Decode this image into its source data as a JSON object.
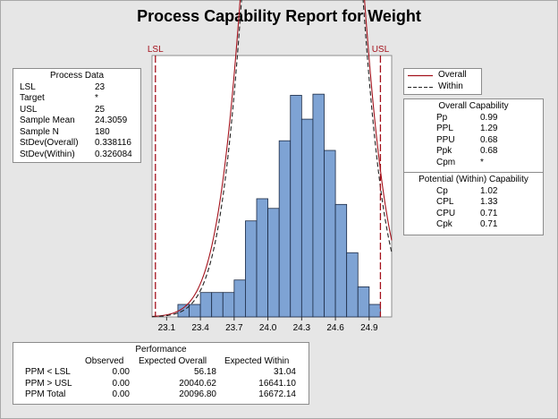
{
  "report": {
    "title": "Process Capability Report for Weight"
  },
  "process_data": {
    "title": "Process Data",
    "rows": [
      {
        "label": "LSL",
        "value": "23"
      },
      {
        "label": "Target",
        "value": "*"
      },
      {
        "label": "USL",
        "value": "25"
      },
      {
        "label": "Sample Mean",
        "value": "24.3059"
      },
      {
        "label": "Sample N",
        "value": "180"
      },
      {
        "label": "StDev(Overall)",
        "value": "0.338116"
      },
      {
        "label": "StDev(Within)",
        "value": "0.326084"
      }
    ]
  },
  "legend": {
    "overall": "Overall",
    "within": "Within"
  },
  "overall_capability": {
    "title": "Overall Capability",
    "rows": [
      {
        "label": "Pp",
        "value": "0.99"
      },
      {
        "label": "PPL",
        "value": "1.29"
      },
      {
        "label": "PPU",
        "value": "0.68"
      },
      {
        "label": "Ppk",
        "value": "0.68"
      },
      {
        "label": "Cpm",
        "value": "*"
      }
    ]
  },
  "within_capability": {
    "title": "Potential (Within) Capability",
    "rows": [
      {
        "label": "Cp",
        "value": "1.02"
      },
      {
        "label": "CPL",
        "value": "1.33"
      },
      {
        "label": "CPU",
        "value": "0.71"
      },
      {
        "label": "Cpk",
        "value": "0.71"
      }
    ]
  },
  "performance": {
    "title": "Performance",
    "columns": [
      "Observed",
      "Expected Overall",
      "Expected Within"
    ],
    "rows": [
      {
        "label": "PPM < LSL",
        "values": [
          "0.00",
          "56.18",
          "31.04"
        ]
      },
      {
        "label": "PPM > USL",
        "values": [
          "0.00",
          "20040.62",
          "16641.10"
        ]
      },
      {
        "label": "PPM Total",
        "values": [
          "0.00",
          "20096.80",
          "16672.14"
        ]
      }
    ]
  },
  "chart_data": {
    "type": "bar",
    "title": "Process Capability Report for Weight",
    "xlim": [
      22.97,
      25.1
    ],
    "x_ticks": [
      23.1,
      23.4,
      23.7,
      24.0,
      24.3,
      24.6,
      24.9
    ],
    "x_tick_labels": [
      "23.1",
      "23.4",
      "23.7",
      "24.0",
      "24.3",
      "24.6",
      "24.9"
    ],
    "bin_edges": [
      23.1,
      23.2,
      23.3,
      23.4,
      23.5,
      23.6,
      23.7,
      23.8,
      23.9,
      24.0,
      24.1,
      24.2,
      24.3,
      24.4,
      24.5,
      24.6,
      24.7,
      24.8,
      24.9,
      25.0
    ],
    "counts": [
      0,
      0.22,
      0.22,
      0.43,
      0.43,
      0.43,
      0.65,
      1.69,
      2.08,
      1.91,
      3.1,
      3.9,
      3.48,
      3.92,
      2.93,
      1.98,
      1.13,
      0.53,
      0.22
    ],
    "ylim": [
      0,
      4.6
    ],
    "spec_limits": [
      {
        "name": "LSL",
        "value": 23
      },
      {
        "name": "USL",
        "value": 25
      }
    ],
    "series": [
      {
        "name": "Overall",
        "mean": 24.3059,
        "sd": 0.338116,
        "color": "#a4121c",
        "style": "solid"
      },
      {
        "name": "Within",
        "mean": 24.3059,
        "sd": 0.326084,
        "color": "#222222",
        "style": "dashed"
      }
    ],
    "colors": {
      "bar_fill": "#7ea3d4",
      "bar_edge": "#1b2a44",
      "spec_line": "#a4121c"
    }
  }
}
